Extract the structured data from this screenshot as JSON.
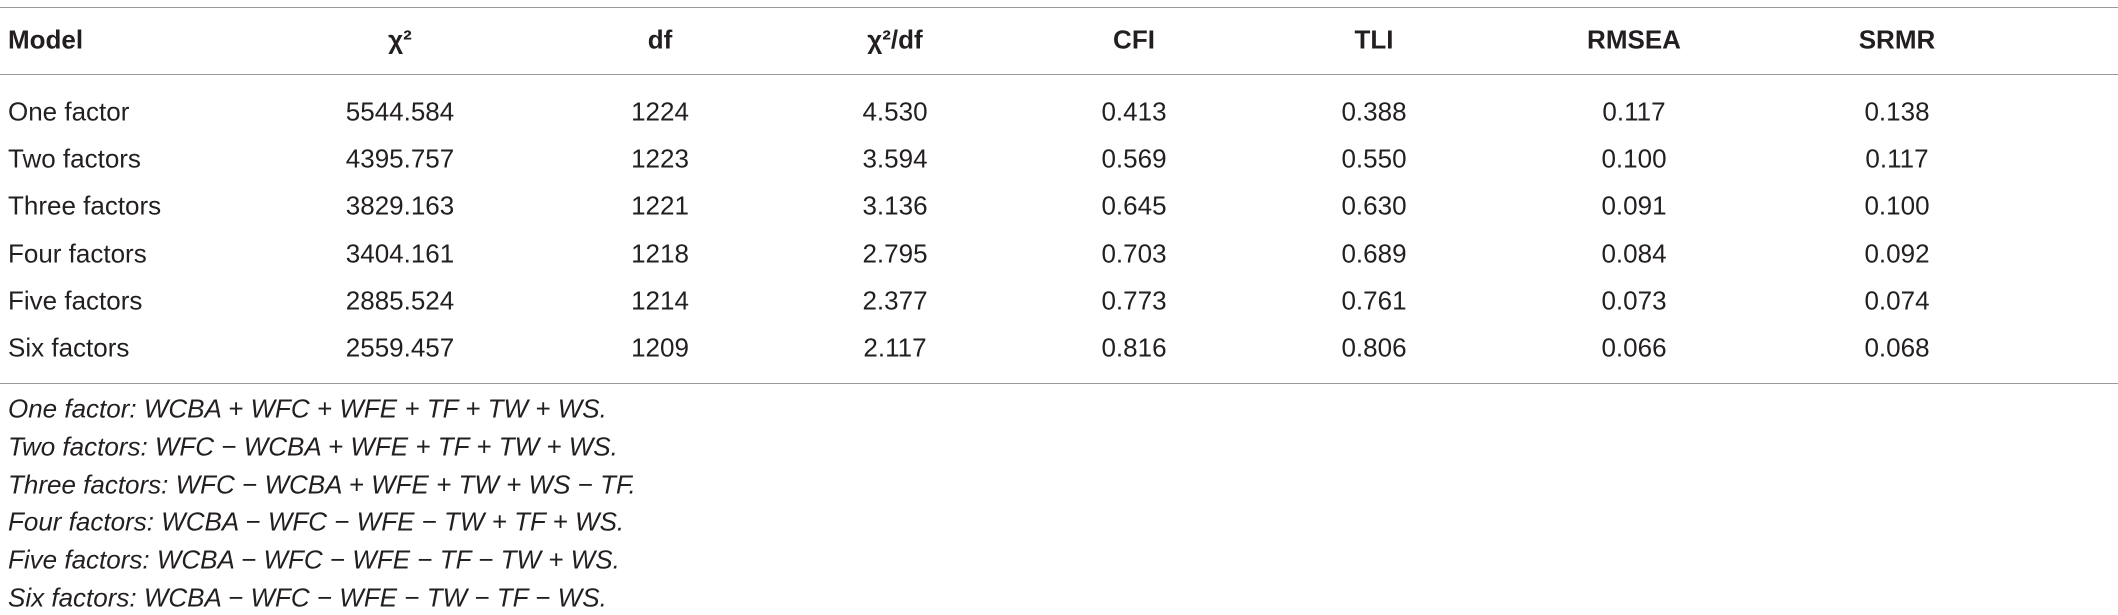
{
  "table": {
    "headers": [
      "Model",
      "χ²",
      "df",
      "χ²/df",
      "CFI",
      "TLI",
      "RMSEA",
      "SRMR"
    ],
    "rows": [
      [
        "One factor",
        "5544.584",
        "1224",
        "4.530",
        "0.413",
        "0.388",
        "0.117",
        "0.138"
      ],
      [
        "Two factors",
        "4395.757",
        "1223",
        "3.594",
        "0.569",
        "0.550",
        "0.100",
        "0.117"
      ],
      [
        "Three factors",
        "3829.163",
        "1221",
        "3.136",
        "0.645",
        "0.630",
        "0.091",
        "0.100"
      ],
      [
        "Four factors",
        "3404.161",
        "1218",
        "2.795",
        "0.703",
        "0.689",
        "0.084",
        "0.092"
      ],
      [
        "Five factors",
        "2885.524",
        "1214",
        "2.377",
        "0.773",
        "0.761",
        "0.073",
        "0.074"
      ],
      [
        "Six factors",
        "2559.457",
        "1209",
        "2.117",
        "0.816",
        "0.806",
        "0.066",
        "0.068"
      ]
    ],
    "notes": [
      "One factor: WCBA + WFC + WFE + TF + TW + WS.",
      "Two factors: WFC − WCBA + WFE + TF + TW + WS.",
      "Three factors: WFC − WCBA + WFE + TW + WS − TF.",
      "Four factors: WCBA − WFC − WFE − TW + TF + WS.",
      "Five factors: WCBA − WFC − WFE − TF − TW + WS.",
      "Six factors: WCBA − WFC − WFE − TW − TF − WS."
    ]
  }
}
